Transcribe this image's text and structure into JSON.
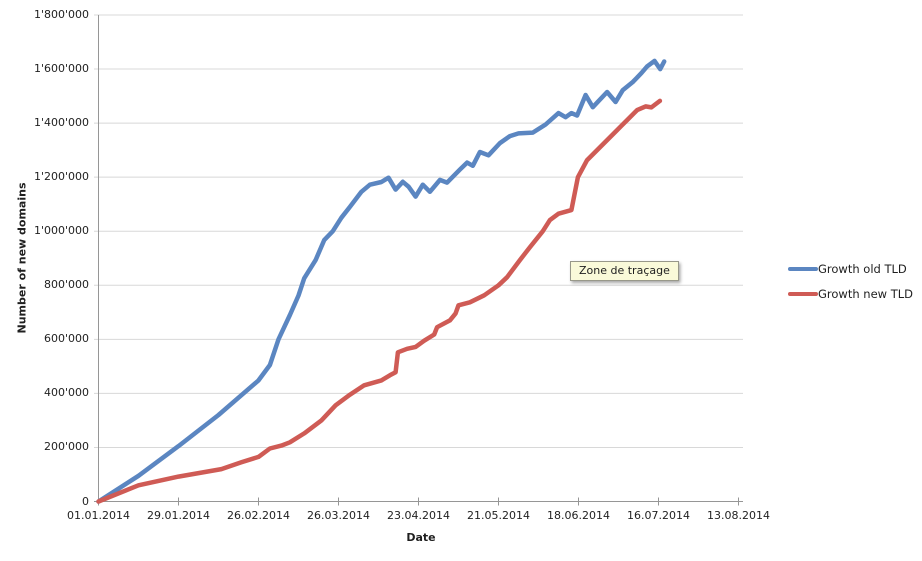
{
  "axes": {
    "y_title": "Number of new domains",
    "x_title": "Date"
  },
  "tooltip": {
    "text": "Zone de traçage"
  },
  "colors": {
    "grid": "#D8D8D8",
    "axis": "#969696",
    "series_old_tld": "#5B86C1",
    "series_new_tld": "#CF5B55",
    "tooltip_bg": "#FAFAD9"
  },
  "chart_data": {
    "type": "line",
    "title": "",
    "xlabel": "Date",
    "ylabel": "Number of new domains",
    "grid": "horizontal",
    "legend_position": "right",
    "x_axis": {
      "unit": "days since 01.01.2014",
      "xlim_days": [
        0,
        224
      ],
      "tick_days": [
        0,
        28,
        56,
        84,
        112,
        140,
        168,
        196,
        224
      ],
      "tick_labels": [
        "01.01.2014",
        "29.01.2014",
        "26.02.2014",
        "26.03.2014",
        "23.04.2014",
        "21.05.2014",
        "18.06.2014",
        "16.07.2014",
        "13.08.2014"
      ]
    },
    "y_axis": {
      "ylim": [
        0,
        1800000
      ],
      "tick_values": [
        0,
        200000,
        400000,
        600000,
        800000,
        1000000,
        1200000,
        1400000,
        1600000,
        1800000
      ],
      "tick_labels": [
        "0",
        "200'000",
        "400'000",
        "600'000",
        "800'000",
        "1'000'000",
        "1'200'000",
        "1'400'000",
        "1'600'000",
        "1'800'000"
      ]
    },
    "series": [
      {
        "name": "Growth old TLD",
        "color": "#5B86C1",
        "points_day_value": [
          [
            0,
            0
          ],
          [
            14,
            95000
          ],
          [
            28,
            205000
          ],
          [
            42,
            320000
          ],
          [
            56,
            448000
          ],
          [
            60,
            505000
          ],
          [
            63,
            600000
          ],
          [
            67,
            690000
          ],
          [
            70,
            762000
          ],
          [
            72,
            826000
          ],
          [
            76,
            893000
          ],
          [
            79,
            967000
          ],
          [
            82,
            1000000
          ],
          [
            85,
            1050000
          ],
          [
            88,
            1090000
          ],
          [
            92,
            1146000
          ],
          [
            95,
            1172000
          ],
          [
            99,
            1182000
          ],
          [
            101.5,
            1198000
          ],
          [
            104,
            1154000
          ],
          [
            106.5,
            1183000
          ],
          [
            108.5,
            1165000
          ],
          [
            111,
            1128000
          ],
          [
            113.5,
            1172000
          ],
          [
            116,
            1146000
          ],
          [
            119.5,
            1190000
          ],
          [
            122,
            1180000
          ],
          [
            126.5,
            1228000
          ],
          [
            129,
            1254000
          ],
          [
            131,
            1242000
          ],
          [
            133.5,
            1293000
          ],
          [
            136.5,
            1281000
          ],
          [
            140.5,
            1326000
          ],
          [
            144,
            1352000
          ],
          [
            147,
            1362000
          ],
          [
            152,
            1365000
          ],
          [
            156.5,
            1395000
          ],
          [
            161,
            1437000
          ],
          [
            163.5,
            1422000
          ],
          [
            165.5,
            1437000
          ],
          [
            167.5,
            1428000
          ],
          [
            170.5,
            1504000
          ],
          [
            173,
            1459000
          ],
          [
            178,
            1515000
          ],
          [
            181,
            1478000
          ],
          [
            183.5,
            1522000
          ],
          [
            187,
            1552000
          ],
          [
            190,
            1585000
          ],
          [
            192,
            1610000
          ],
          [
            194.6,
            1630000
          ],
          [
            196.6,
            1600000
          ],
          [
            198,
            1628000
          ]
        ]
      },
      {
        "name": "Growth new TLD",
        "color": "#CF5B55",
        "points_day_value": [
          [
            0,
            0
          ],
          [
            14,
            60000
          ],
          [
            28,
            92000
          ],
          [
            43,
            120000
          ],
          [
            50,
            145000
          ],
          [
            56,
            165000
          ],
          [
            60,
            196000
          ],
          [
            64,
            207000
          ],
          [
            67,
            219000
          ],
          [
            72,
            252000
          ],
          [
            78,
            300000
          ],
          [
            83,
            356000
          ],
          [
            88,
            395000
          ],
          [
            93,
            430000
          ],
          [
            99,
            448000
          ],
          [
            102,
            467000
          ],
          [
            104,
            478000
          ],
          [
            104.8,
            552000
          ],
          [
            108,
            565000
          ],
          [
            111,
            572000
          ],
          [
            114,
            595000
          ],
          [
            117.5,
            618000
          ],
          [
            118.5,
            645000
          ],
          [
            123,
            670000
          ],
          [
            125,
            696000
          ],
          [
            126,
            726000
          ],
          [
            130,
            737000
          ],
          [
            135,
            763000
          ],
          [
            140,
            800000
          ],
          [
            143,
            830000
          ],
          [
            147.5,
            893000
          ],
          [
            151,
            941000
          ],
          [
            155.5,
            1000000
          ],
          [
            158,
            1041000
          ],
          [
            161,
            1065000
          ],
          [
            165.5,
            1078000
          ],
          [
            167.8,
            1200000
          ],
          [
            171,
            1263000
          ],
          [
            174.5,
            1300000
          ],
          [
            178,
            1337000
          ],
          [
            181.5,
            1374000
          ],
          [
            185,
            1411000
          ],
          [
            188.5,
            1448000
          ],
          [
            191.5,
            1462000
          ],
          [
            193.5,
            1458000
          ],
          [
            196.5,
            1482000
          ]
        ]
      }
    ]
  }
}
